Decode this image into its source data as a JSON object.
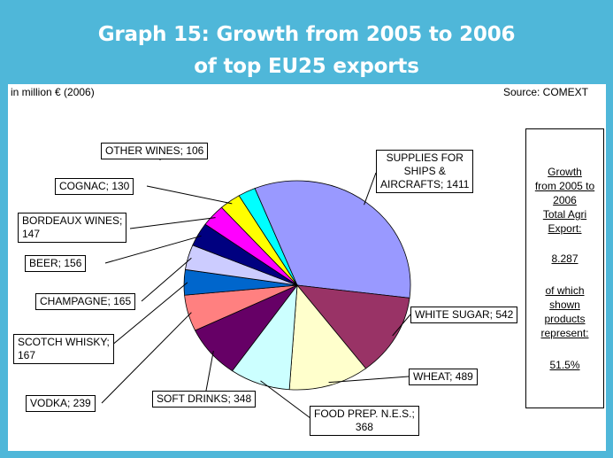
{
  "title": {
    "line1": "Graph 15:  Growth from 2005 to 2006",
    "line2": "of top EU25 exports"
  },
  "unit_note": "in million € (2006)",
  "source_note": "Source: COMEXT",
  "growth_box": {
    "heading_lines": [
      "Growth",
      "from 2005 to",
      "2006",
      "Total Agri",
      "Export:"
    ],
    "total": "8.287",
    "text_lines": [
      "of which",
      "shown",
      "products",
      "represent:"
    ],
    "share": "51.5%"
  },
  "chart_data": {
    "type": "pie",
    "title": "Graph 15:  Growth from 2005 to 2006 of top EU25 exports",
    "unit": "in million € (2006)",
    "slices": [
      {
        "name": "SUPPLIES FOR SHIPS & AIRCRAFTS",
        "value": 1411,
        "label_lines": [
          "SUPPLIES  FOR",
          "SHIPS &",
          "AIRCRAFTS; 1411"
        ],
        "color": "#9999ff"
      },
      {
        "name": "WHITE SUGAR",
        "value": 542,
        "label_lines": [
          "WHITE SUGAR; 542"
        ],
        "color": "#993366"
      },
      {
        "name": "WHEAT",
        "value": 489,
        "label_lines": [
          "WHEAT; 489"
        ],
        "color": "#ffffcc"
      },
      {
        "name": "FOOD PREP. N.E.S.",
        "value": 368,
        "label_lines": [
          "FOOD PREP. N.E.S.;",
          "368"
        ],
        "color": "#ccffff"
      },
      {
        "name": "SOFT DRINKS",
        "value": 348,
        "label_lines": [
          "SOFT DRINKS; 348"
        ],
        "color": "#660066"
      },
      {
        "name": "VODKA",
        "value": 239,
        "label_lines": [
          "VODKA; 239"
        ],
        "color": "#ff8080"
      },
      {
        "name": "SCOTCH WHISKY",
        "value": 167,
        "label_lines": [
          "SCOTCH WHISKY;",
          "167"
        ],
        "color": "#0066cc"
      },
      {
        "name": "CHAMPAGNE",
        "value": 165,
        "label_lines": [
          "CHAMPAGNE; 165"
        ],
        "color": "#ccccff"
      },
      {
        "name": "BEER",
        "value": 156,
        "label_lines": [
          "BEER; 156"
        ],
        "color": "#000080"
      },
      {
        "name": "BORDEAUX WINES",
        "value": 147,
        "label_lines": [
          "BORDEAUX WINES;",
          "147"
        ],
        "color": "#ff00ff"
      },
      {
        "name": "COGNAC",
        "value": 130,
        "label_lines": [
          "COGNAC; 130"
        ],
        "color": "#ffff00"
      },
      {
        "name": "OTHER WINES",
        "value": 106,
        "label_lines": [
          "OTHER  WINES; 106"
        ],
        "color": "#00ffff"
      }
    ]
  }
}
